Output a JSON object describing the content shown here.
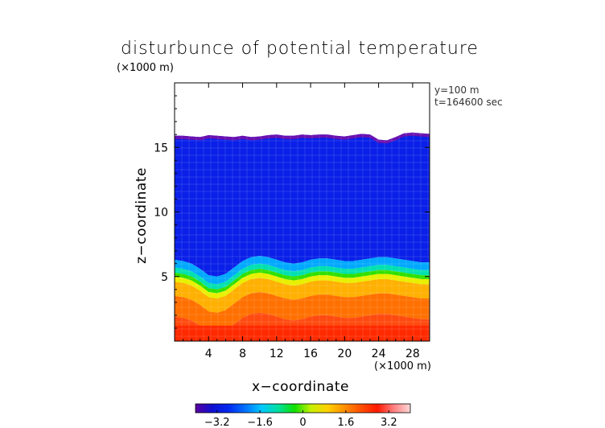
{
  "chart_data": {
    "type": "heatmap",
    "title": "disturbunce of potential temperature",
    "x_unit": "(×1000 m)",
    "y_unit": "(×1000 m)",
    "xlabel": "x−coordinate",
    "ylabel": "z−coordinate",
    "annotations": [
      "y=100 m",
      "t=164600 sec"
    ],
    "xlim": [
      0,
      30
    ],
    "ylim": [
      0,
      20
    ],
    "x_ticks": [
      4,
      8,
      12,
      16,
      20,
      24,
      28
    ],
    "y_ticks": [
      5,
      10,
      15
    ],
    "colorbar": {
      "range": [
        -4.0,
        4.0
      ],
      "ticks": [
        -3.2,
        -1.6,
        0,
        1.6,
        3.2
      ],
      "tick_labels": [
        "−3.2",
        "−1.6",
        "0",
        "1.6",
        "3.2"
      ],
      "colors": [
        "#5a00a0",
        "#1010d0",
        "#0028f0",
        "#0070ff",
        "#00c8ff",
        "#00e0a0",
        "#10e000",
        "#c8f000",
        "#ffd000",
        "#ff9000",
        "#ff5000",
        "#ff1800",
        "#ff8080",
        "#ffd8d8"
      ]
    },
    "field": {
      "description_free": true,
      "top_of_data_z": [
        15.9,
        15.9,
        15.85,
        15.8,
        15.95,
        15.9,
        15.85,
        15.8,
        15.9,
        15.8,
        15.85,
        15.95,
        16.0,
        15.9,
        15.9,
        16.0,
        15.95,
        16.0,
        16.0,
        15.9,
        15.85,
        15.95,
        16.05,
        16.0,
        15.6,
        15.55,
        15.8,
        16.1,
        16.15,
        16.1,
        16.05
      ],
      "interface_z": [
        5.1,
        5.0,
        4.8,
        4.4,
        3.9,
        3.8,
        4.0,
        4.5,
        5.0,
        5.3,
        5.4,
        5.3,
        5.1,
        4.9,
        4.8,
        4.9,
        5.1,
        5.2,
        5.2,
        5.1,
        5.0,
        5.0,
        5.1,
        5.2,
        5.3,
        5.3,
        5.2,
        5.1,
        5.0,
        4.9,
        4.9
      ]
    }
  }
}
